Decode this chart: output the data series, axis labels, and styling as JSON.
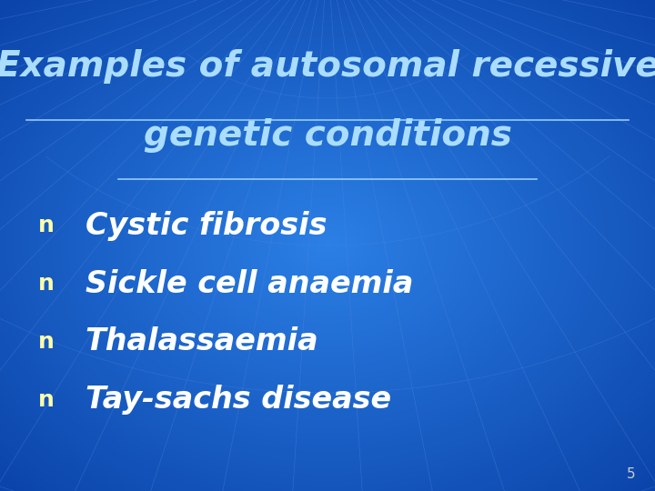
{
  "title_line1": "Examples of autosomal recessive",
  "title_line2": "genetic conditions",
  "bullet_items": [
    "Cystic fibrosis",
    "Sickle cell anaemia",
    "Thalassaemia",
    "Tay-sachs disease"
  ],
  "title_color": "#aaddff",
  "bullet_color": "#ffffff",
  "bullet_marker_color": "#ffffaa",
  "page_number": "5",
  "page_number_color": "#cccccc",
  "title_fontsize": 28,
  "bullet_fontsize": 24,
  "page_num_fontsize": 11
}
